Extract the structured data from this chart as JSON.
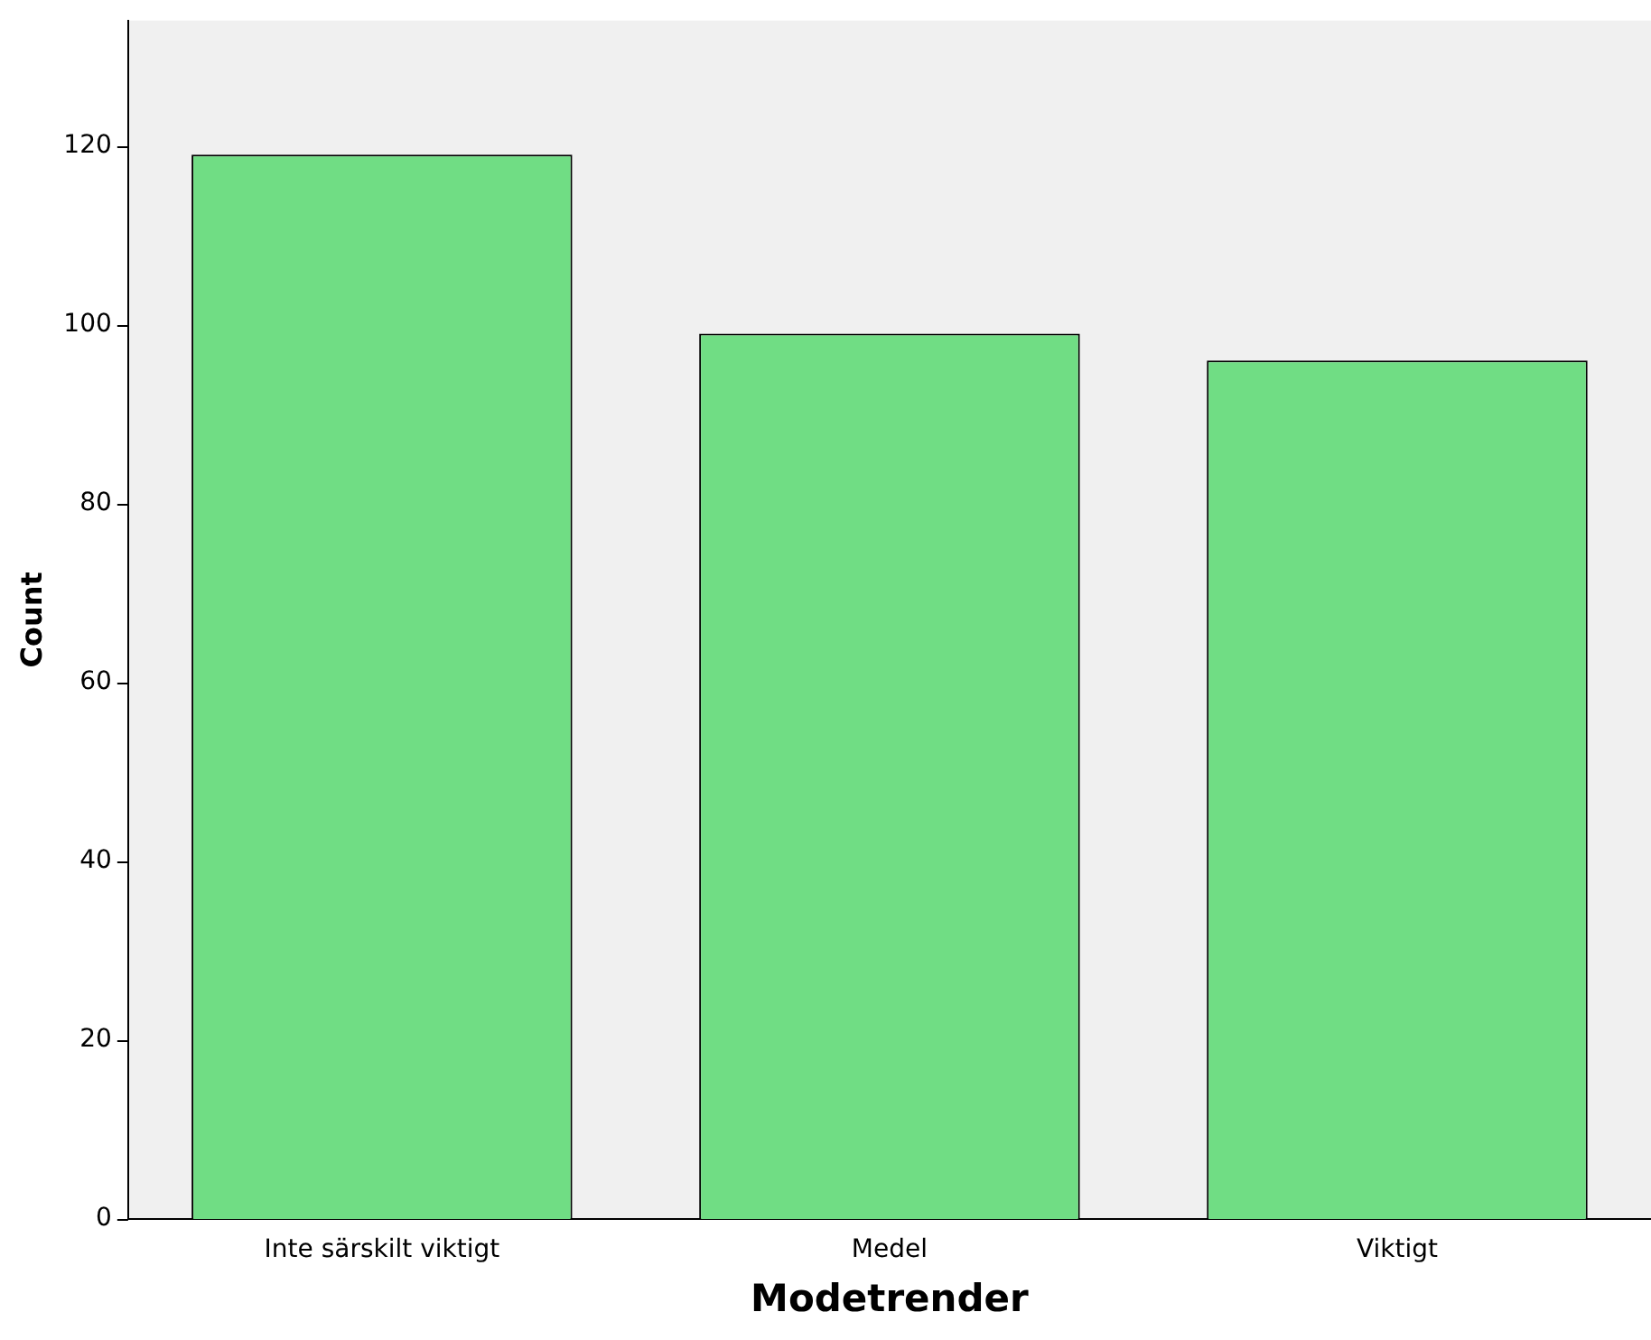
{
  "chart_data": {
    "type": "bar",
    "xlabel": "Modetrender",
    "ylabel": "Count",
    "categories": [
      "Inte särskilt viktigt",
      "Medel",
      "Viktigt"
    ],
    "values": [
      119,
      99,
      96
    ],
    "color": "#70dd84",
    "ylim": [
      0,
      134
    ],
    "yticks": [
      0,
      20,
      40,
      60,
      80,
      100,
      120
    ],
    "grid": false,
    "legend": false
  }
}
